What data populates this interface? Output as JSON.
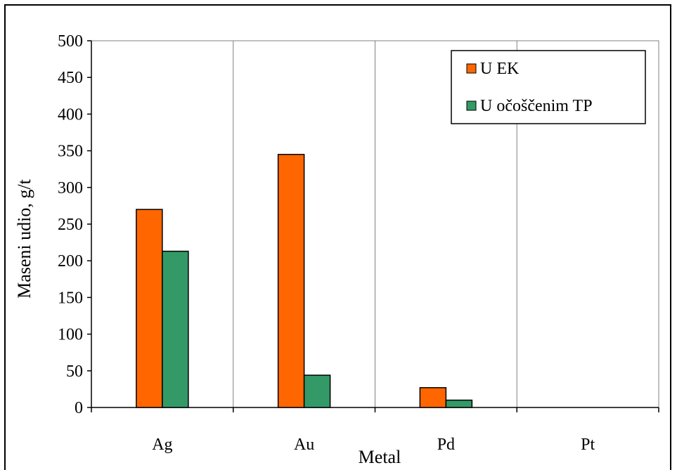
{
  "chart_data": {
    "type": "bar",
    "categories": [
      "Ag",
      "Au",
      "Pd",
      "Pt"
    ],
    "series": [
      {
        "name": "U EK",
        "values": [
          270,
          345,
          27,
          0
        ],
        "color": "#ff6600"
      },
      {
        "name": "U očoščenim TP",
        "values": [
          213,
          44,
          10,
          0
        ],
        "color": "#339966"
      }
    ],
    "xlabel": "Metal",
    "ylabel": "Maseni udio, g/t",
    "ylim": [
      0,
      500
    ],
    "yticks": [
      0,
      50,
      100,
      150,
      200,
      250,
      300,
      350,
      400,
      450,
      500
    ],
    "grid": {
      "horizontal": false,
      "vertical": true
    },
    "legend_position": "top-right"
  }
}
